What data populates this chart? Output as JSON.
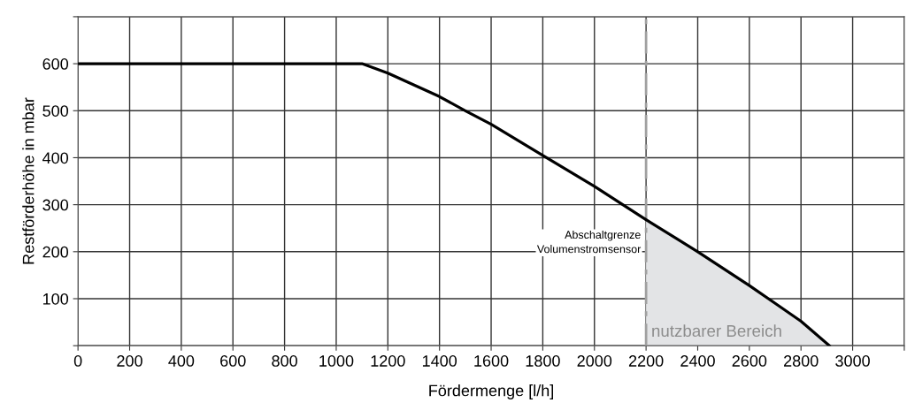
{
  "chart_data": {
    "type": "line",
    "xlabel": "Fördermenge [l/h]",
    "ylabel": "Restförderhöhe in mbar",
    "series": [
      {
        "type": "area",
        "name": "nutzbarer Bereich",
        "color": "#e3e4e6",
        "x": [
          2200,
          2400,
          2600,
          2700,
          2800,
          2910
        ],
        "values": [
          268,
          200,
          128,
          90,
          52,
          0
        ]
      },
      {
        "color": "#000000",
        "x": [
          0,
          1100,
          1200,
          1400,
          1500,
          1600,
          1800,
          2000,
          2200,
          2400,
          2600,
          2700,
          2800,
          2910
        ],
        "values": [
          600,
          600,
          580,
          530,
          500,
          471,
          405,
          339,
          268,
          200,
          128,
          90,
          52,
          0
        ]
      }
    ],
    "xlim": [
      0,
      3200
    ],
    "ylim": [
      0,
      700
    ],
    "xticks": [
      0,
      200,
      400,
      600,
      800,
      1000,
      1200,
      1400,
      1600,
      1800,
      2000,
      2200,
      2400,
      2600,
      2800,
      3000,
      {
        "value": 3200,
        "label": null
      }
    ],
    "yticks": [
      {
        "value": 0,
        "label": null
      },
      100,
      200,
      300,
      400,
      500,
      600,
      {
        "value": 700,
        "label": null
      }
    ],
    "grid": true,
    "marker": "none",
    "line_style": "solid",
    "ref_lines": [
      {
        "axis": "x",
        "value": 2200,
        "label": "Abschaltgrenze\nVolumenstromsensor",
        "color": "#a0a0a0",
        "line_style": "dashdot"
      }
    ]
  }
}
